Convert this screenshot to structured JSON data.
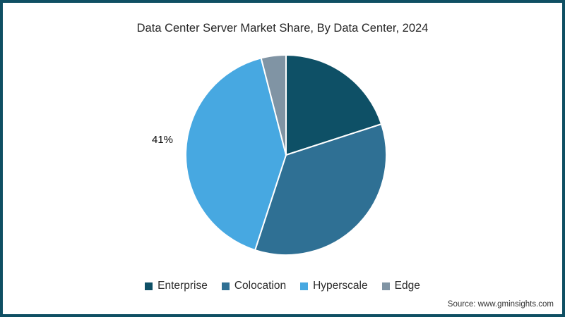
{
  "title": "Data Center Server Market Share, By Data Center, 2024",
  "source_note": "Source: www.gminsights.com",
  "frame": {
    "border_color": "#0f4f63",
    "background": "#ffffff"
  },
  "chart_data": {
    "type": "pie",
    "title": "Data Center Server Market Share, By Data Center, 2024",
    "categories": [
      "Enterprise",
      "Colocation",
      "Hyperscale",
      "Edge"
    ],
    "values": [
      20,
      35,
      41,
      4
    ],
    "colors": [
      "#0e5066",
      "#2f7094",
      "#47a8e1",
      "#8094a4"
    ],
    "start_angle": "12-oclock",
    "direction": "clockwise",
    "slice_border_color": "#ffffff",
    "legend_position": "bottom",
    "data_labels": [
      {
        "category": "Hyperscale",
        "text": "41%",
        "position": "outside-left"
      }
    ]
  }
}
